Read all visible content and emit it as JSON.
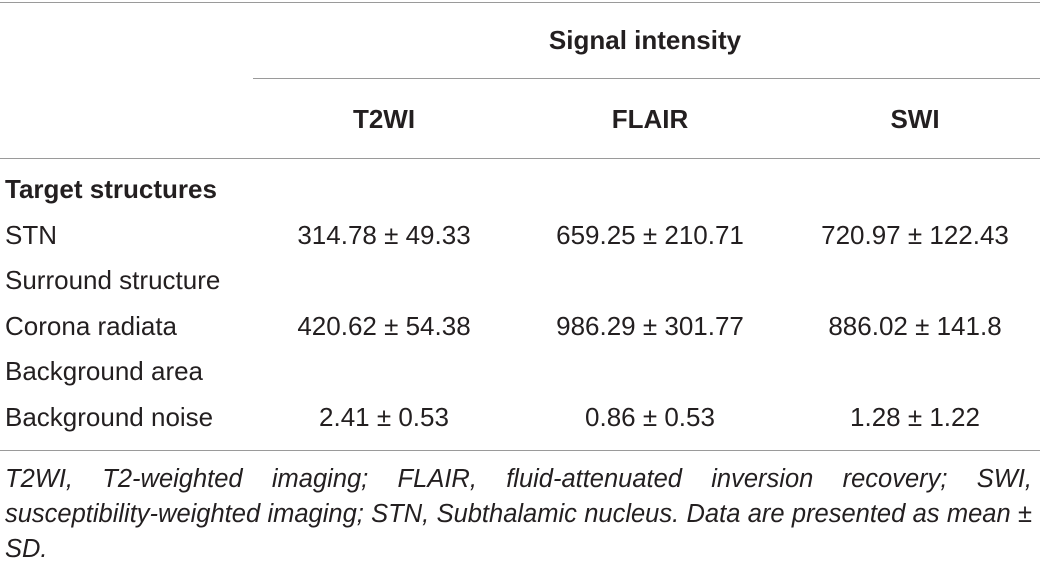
{
  "table": {
    "group_header": "Signal intensity",
    "columns": [
      "T2WI",
      "FLAIR",
      "SWI"
    ],
    "rows": [
      {
        "label": "Target structures",
        "bold": true
      },
      {
        "label": "STN",
        "values": [
          "314.78 ± 49.33",
          "659.25 ± 210.71",
          "720.97 ± 122.43"
        ]
      },
      {
        "label": "Surround structure"
      },
      {
        "label": "Corona radiata",
        "values": [
          "420.62 ± 54.38",
          "986.29 ± 301.77",
          "886.02 ± 141.8"
        ]
      },
      {
        "label": "Background area"
      },
      {
        "label": "Background noise",
        "values": [
          "2.41 ± 0.53",
          "0.86 ± 0.53",
          "1.28 ± 1.22"
        ]
      }
    ]
  },
  "footnote": "T2WI, T2-weighted imaging; FLAIR, fluid-attenuated inversion recovery; SWI, susceptibility-weighted imaging; STN, Subthalamic nucleus. Data are presented as mean ± SD."
}
